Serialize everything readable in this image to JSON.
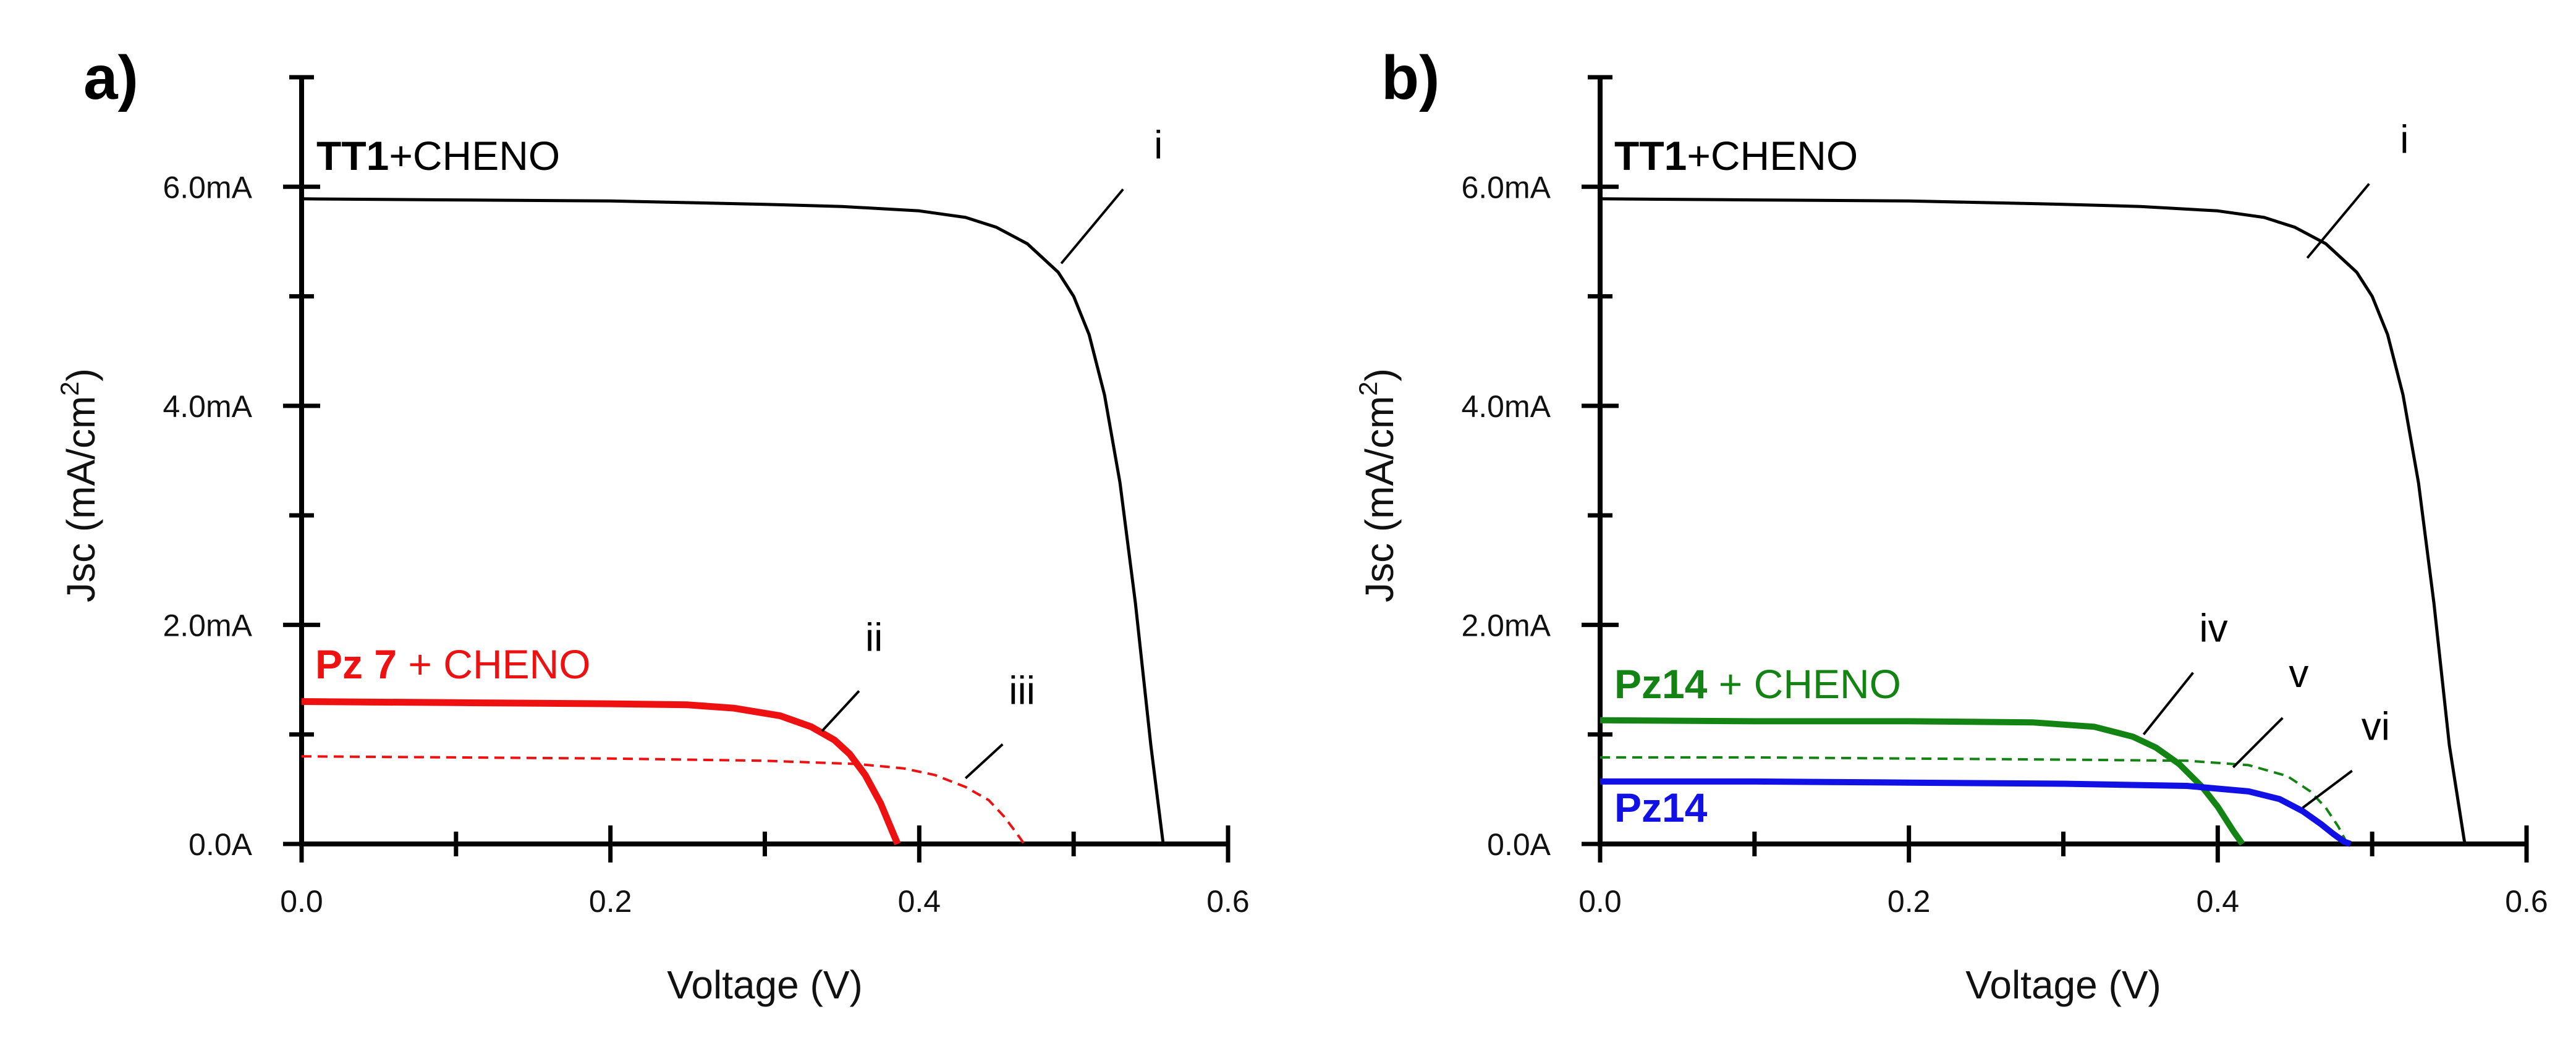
{
  "colors": {
    "black": "#000000",
    "red": "#ee1111",
    "green": "#138313",
    "blue": "#1111e6"
  },
  "chart_data": [
    {
      "type": "line",
      "panel_label": "a)",
      "xlabel": "Voltage (V)",
      "ylabel_main": "Jsc (mA/cm",
      "ylabel_sup": "2",
      "ylabel_close": ")",
      "xlim": [
        0,
        0.6
      ],
      "ylim": [
        0,
        7
      ],
      "xticks": [
        0.0,
        0.2,
        0.4,
        0.6
      ],
      "xtick_labels": [
        "0.0",
        "0.2",
        "0.4",
        "0.6"
      ],
      "yticks": [
        0,
        2,
        4,
        6
      ],
      "ytick_labels": [
        "0.0A",
        "2.0mA",
        "4.0mA",
        "6.0mA"
      ],
      "labels": [
        {
          "id": "tt1",
          "bold": "TT1",
          "rest": "+CHENO",
          "color": "#000000"
        },
        {
          "id": "pz7",
          "bold": "Pz 7",
          "rest": " + CHENO",
          "color": "#ee1111"
        }
      ],
      "annotations": [
        {
          "text": "i",
          "x": 0.492,
          "y": 5.3,
          "color": "#000000"
        },
        {
          "text": "ii",
          "x": 0.337,
          "y": 1.03,
          "color": "#000000"
        },
        {
          "text": "iii",
          "x": 0.43,
          "y": 0.6,
          "color": "#000000"
        }
      ],
      "series": [
        {
          "name": "i",
          "color": "#000000",
          "style": "solid",
          "width": 5,
          "x": [
            0,
            0.1,
            0.2,
            0.3,
            0.35,
            0.4,
            0.43,
            0.45,
            0.47,
            0.49,
            0.5,
            0.51,
            0.52,
            0.53,
            0.54,
            0.55,
            0.558
          ],
          "y": [
            5.89,
            5.88,
            5.87,
            5.84,
            5.82,
            5.78,
            5.72,
            5.63,
            5.48,
            5.22,
            5.0,
            4.65,
            4.1,
            3.3,
            2.2,
            0.9,
            0.0
          ]
        },
        {
          "name": "ii",
          "color": "#ee1111",
          "style": "solid",
          "width": 11,
          "x": [
            0,
            0.1,
            0.2,
            0.25,
            0.28,
            0.31,
            0.33,
            0.345,
            0.355,
            0.365,
            0.375,
            0.383,
            0.386
          ],
          "y": [
            1.3,
            1.29,
            1.28,
            1.27,
            1.24,
            1.17,
            1.07,
            0.95,
            0.82,
            0.63,
            0.37,
            0.1,
            0.0
          ]
        },
        {
          "name": "iii",
          "color": "#ee1111",
          "style": "dashed",
          "width": 4,
          "x": [
            0,
            0.1,
            0.2,
            0.3,
            0.36,
            0.39,
            0.41,
            0.43,
            0.445,
            0.455,
            0.463,
            0.468
          ],
          "y": [
            0.8,
            0.79,
            0.78,
            0.76,
            0.73,
            0.69,
            0.63,
            0.52,
            0.4,
            0.25,
            0.1,
            0.0
          ]
        }
      ]
    },
    {
      "type": "line",
      "panel_label": "b)",
      "xlabel": "Voltage (V)",
      "ylabel_main": "Jsc (mA/cm",
      "ylabel_sup": "2",
      "ylabel_close": ")",
      "xlim": [
        0,
        0.6
      ],
      "ylim": [
        0,
        7
      ],
      "xticks": [
        0.0,
        0.2,
        0.4,
        0.6
      ],
      "xtick_labels": [
        "0.0",
        "0.2",
        "0.4",
        "0.6"
      ],
      "yticks": [
        0,
        2,
        4,
        6
      ],
      "ytick_labels": [
        "0.0A",
        "2.0mA",
        "4.0mA",
        "6.0mA"
      ],
      "labels": [
        {
          "id": "tt1",
          "bold": "TT1",
          "rest": "+CHENO",
          "color": "#000000"
        },
        {
          "id": "pz14cheno",
          "bold": "Pz14",
          "rest": " + CHENO",
          "color": "#138313"
        },
        {
          "id": "pz14",
          "bold": "Pz14",
          "rest": "",
          "color": "#1111e6"
        }
      ],
      "annotations": [
        {
          "text": "i",
          "x": 0.458,
          "y": 5.35,
          "color": "#000000"
        },
        {
          "text": "iv",
          "x": 0.352,
          "y": 1.0,
          "color": "#000000"
        },
        {
          "text": "v",
          "x": 0.41,
          "y": 0.7,
          "color": "#000000"
        },
        {
          "text": "vi",
          "x": 0.455,
          "y": 0.33,
          "color": "#000000"
        }
      ],
      "series": [
        {
          "name": "i",
          "color": "#000000",
          "style": "solid",
          "width": 5,
          "x": [
            0,
            0.1,
            0.2,
            0.3,
            0.35,
            0.4,
            0.43,
            0.45,
            0.47,
            0.49,
            0.5,
            0.51,
            0.52,
            0.53,
            0.54,
            0.55,
            0.56
          ],
          "y": [
            5.89,
            5.88,
            5.87,
            5.84,
            5.82,
            5.78,
            5.72,
            5.63,
            5.48,
            5.22,
            5.0,
            4.65,
            4.1,
            3.3,
            2.2,
            0.9,
            0.0
          ]
        },
        {
          "name": "iv",
          "color": "#138313",
          "style": "solid",
          "width": 10,
          "x": [
            0,
            0.1,
            0.2,
            0.28,
            0.32,
            0.345,
            0.36,
            0.375,
            0.39,
            0.4,
            0.41,
            0.416
          ],
          "y": [
            1.13,
            1.12,
            1.12,
            1.11,
            1.07,
            0.98,
            0.88,
            0.73,
            0.52,
            0.34,
            0.12,
            0.0
          ]
        },
        {
          "name": "v",
          "color": "#138313",
          "style": "dashed",
          "width": 4,
          "x": [
            0,
            0.1,
            0.2,
            0.3,
            0.38,
            0.42,
            0.445,
            0.46,
            0.47,
            0.478,
            0.484
          ],
          "y": [
            0.79,
            0.79,
            0.78,
            0.77,
            0.76,
            0.72,
            0.62,
            0.48,
            0.33,
            0.16,
            0.0
          ]
        },
        {
          "name": "vi",
          "color": "#1111e6",
          "style": "solid",
          "width": 10,
          "x": [
            0,
            0.1,
            0.2,
            0.3,
            0.38,
            0.42,
            0.44,
            0.455,
            0.467,
            0.475,
            0.482,
            0.486
          ],
          "y": [
            0.57,
            0.57,
            0.56,
            0.55,
            0.53,
            0.48,
            0.41,
            0.3,
            0.18,
            0.09,
            0.02,
            0.0
          ]
        }
      ]
    }
  ]
}
